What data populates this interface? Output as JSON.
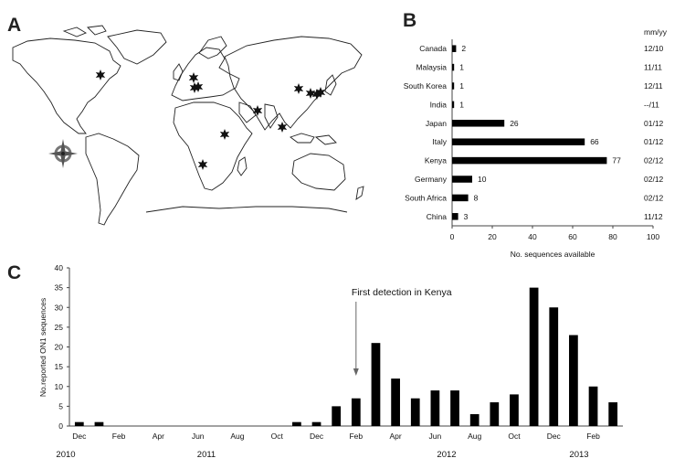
{
  "panels": {
    "a": "A",
    "b": "B",
    "c": "C"
  },
  "map": {
    "marker_color": "#111111",
    "compass_icon": "compass-rose-icon"
  },
  "chart_data": [
    {
      "type": "bar",
      "orientation": "horizontal",
      "categories": [
        "Canada",
        "Malaysia",
        "South Korea",
        "India",
        "Japan",
        "Italy",
        "Kenya",
        "Germany",
        "South Africa",
        "China"
      ],
      "values": [
        2,
        1,
        1,
        1,
        26,
        66,
        77,
        10,
        8,
        3
      ],
      "dates": [
        "12/10",
        "11/11",
        "12/11",
        "--/11",
        "01/12",
        "01/12",
        "02/12",
        "02/12",
        "02/12",
        "11/12"
      ],
      "date_header": "mm/yy",
      "xlabel": "No. sequences available",
      "xlim": [
        0,
        100
      ],
      "xticks": [
        0,
        20,
        40,
        60,
        80,
        100
      ],
      "bar_color": "#000000",
      "grid": false
    },
    {
      "type": "bar",
      "ylabel": "No.reported ON1 sequences",
      "ylim": [
        0,
        40
      ],
      "yticks": [
        0,
        5,
        10,
        15,
        20,
        25,
        30,
        35,
        40
      ],
      "x": [
        "2010-12",
        "2011-01",
        "2011-02",
        "2011-03",
        "2011-04",
        "2011-05",
        "2011-06",
        "2011-07",
        "2011-08",
        "2011-09",
        "2011-10",
        "2011-11",
        "2011-12",
        "2012-01",
        "2012-02",
        "2012-03",
        "2012-04",
        "2012-05",
        "2012-06",
        "2012-07",
        "2012-08",
        "2012-09",
        "2012-10",
        "2012-11",
        "2012-12",
        "2013-01",
        "2013-02",
        "2013-03"
      ],
      "values": [
        1,
        1,
        0,
        0,
        0,
        0,
        0,
        0,
        0,
        0,
        0,
        1,
        1,
        5,
        7,
        21,
        12,
        7,
        9,
        9,
        3,
        6,
        8,
        35,
        30,
        23,
        10,
        6
      ],
      "month_ticks": [
        "Dec",
        "Feb",
        "Apr",
        "Jun",
        "Aug",
        "Oct",
        "Dec",
        "Feb",
        "Apr",
        "Jun",
        "Aug",
        "Oct",
        "Dec",
        "Feb"
      ],
      "years": [
        "2010",
        "2011",
        "2012",
        "2013"
      ],
      "annotation": {
        "text": "First detection in Kenya",
        "month": "2012-02"
      },
      "bar_color": "#000000",
      "grid": false
    }
  ]
}
